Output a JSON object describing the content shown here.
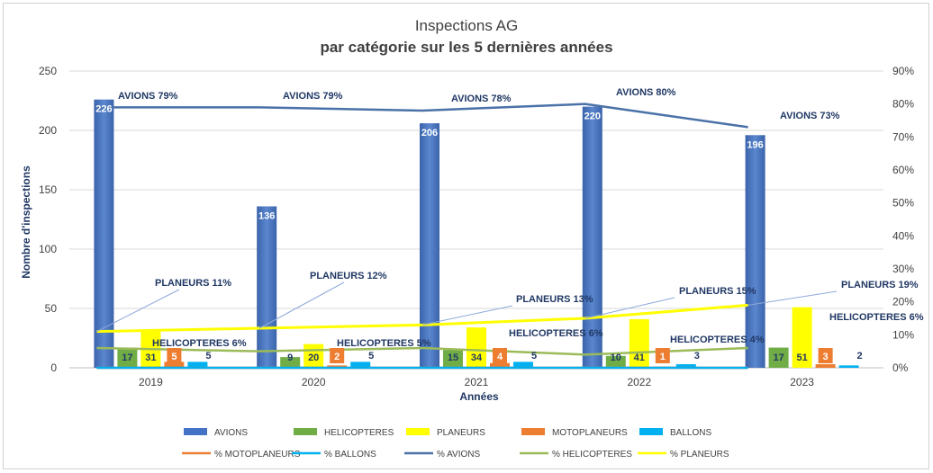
{
  "chart_data": {
    "type": "bar",
    "title": "Inspections AG",
    "subtitle": "par catégorie  sur les 5 dernières années",
    "xlabel": "Années",
    "ylabel": "Nombre d'inspections",
    "ylim": [
      0,
      250
    ],
    "yticks": [
      "0",
      "50",
      "100",
      "150",
      "200",
      "250"
    ],
    "y2lim": [
      0,
      0.9
    ],
    "y2ticks": [
      "0%",
      "10%",
      "20%",
      "30%",
      "40%",
      "50%",
      "60%",
      "70%",
      "80%",
      "90%"
    ],
    "categories": [
      "2019",
      "2020",
      "2021",
      "2022",
      "2023"
    ],
    "grid": true,
    "legend_position": "bottom",
    "series": [
      {
        "name": "AVIONS",
        "kind": "bar",
        "color": "#4472C4",
        "values": [
          226,
          136,
          206,
          220,
          196
        ],
        "labels": [
          "226",
          "136",
          "206",
          "220",
          "196"
        ]
      },
      {
        "name": "HELICOPTERES",
        "kind": "bar",
        "color": "#70AD47",
        "values": [
          17,
          9,
          15,
          10,
          17
        ],
        "labels": [
          "17",
          "9",
          "15",
          "10",
          "17"
        ]
      },
      {
        "name": "PLANEURS",
        "kind": "bar",
        "color": "#FFFF00",
        "values": [
          31,
          20,
          34,
          41,
          51
        ],
        "labels": [
          "31",
          "20",
          "34",
          "41",
          "51"
        ]
      },
      {
        "name": "MOTOPLANEURS",
        "kind": "bar",
        "color": "#ED7D31",
        "values": [
          5,
          2,
          4,
          1,
          3
        ],
        "labels": [
          "5",
          "2",
          "4",
          "1",
          "3"
        ]
      },
      {
        "name": "BALLONS",
        "kind": "bar",
        "color": "#00B0F0",
        "values": [
          5,
          5,
          5,
          3,
          2
        ],
        "labels": [
          "5",
          "5",
          "5",
          "3",
          "2"
        ]
      },
      {
        "name": "% MOTOPLANEURS",
        "kind": "line",
        "color": "#ED7D31",
        "values": [
          0.0,
          0.0,
          0.0,
          0.0,
          0.0
        ]
      },
      {
        "name": "% BALLONS",
        "kind": "line",
        "color": "#00B0F0",
        "values": [
          0.0,
          0.0,
          0.0,
          0.0,
          0.0
        ]
      },
      {
        "name": "% AVIONS",
        "kind": "line",
        "color": "#4A72A8",
        "values": [
          0.79,
          0.79,
          0.78,
          0.8,
          0.73
        ],
        "labels": [
          "AVIONS 79%",
          "AVIONS 79%",
          "AVIONS 78%",
          "AVIONS 80%",
          "AVIONS 73%"
        ]
      },
      {
        "name": "% HELICOPTERES",
        "kind": "line",
        "color": "#9BBB59",
        "values": [
          0.06,
          0.05,
          0.06,
          0.04,
          0.06
        ],
        "labels": [
          "HELICOPTERES 6%",
          "HELICOPTERES 5%",
          "HELICOPTERES 6%",
          "HELICOPTERES 4%",
          "HELICOPTERES 6%"
        ]
      },
      {
        "name": "% PLANEURS",
        "kind": "line",
        "color": "#FFFF00",
        "values": [
          0.11,
          0.12,
          0.13,
          0.15,
          0.19
        ],
        "labels": [
          "PLANEURS 11%",
          "PLANEURS 12%",
          "PLANEURS 13%",
          "PLANEURS 15%",
          "PLANEURS 19%"
        ]
      }
    ]
  }
}
